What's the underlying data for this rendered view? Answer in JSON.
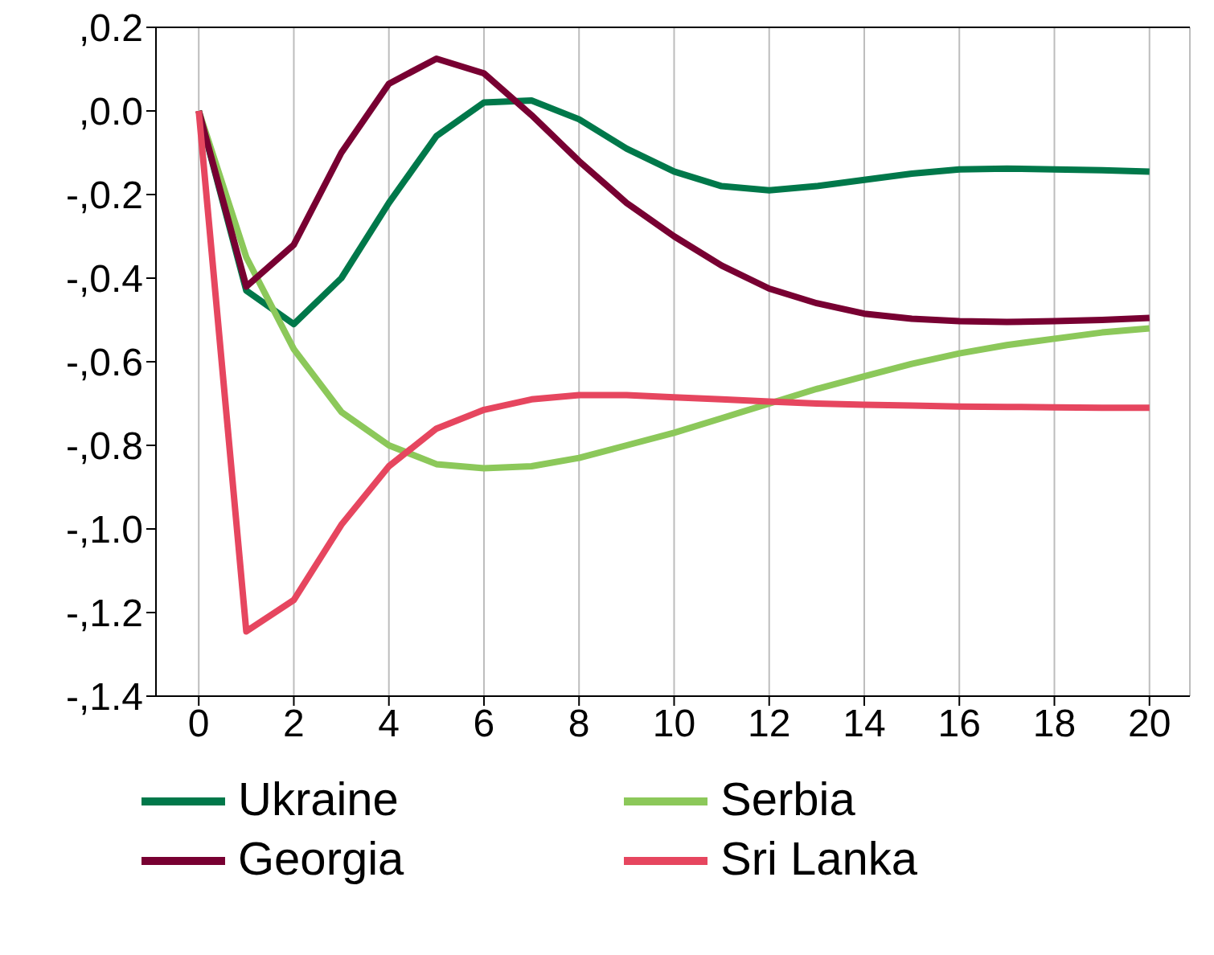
{
  "chart_data": {
    "type": "line",
    "x": [
      0,
      1,
      2,
      3,
      4,
      5,
      6,
      7,
      8,
      9,
      10,
      11,
      12,
      13,
      14,
      15,
      16,
      17,
      18,
      19,
      20
    ],
    "xlim": [
      -0.9,
      20.85
    ],
    "xticks": [
      0,
      2,
      4,
      6,
      8,
      10,
      12,
      14,
      16,
      18,
      20
    ],
    "ylim": [
      -1.4,
      0.2
    ],
    "yticks": [
      {
        "value": 0.2,
        "label": ",0.2"
      },
      {
        "value": 0,
        "label": ",0.0"
      },
      {
        "value": -0.2,
        "label": "-,0.2"
      },
      {
        "value": -0.4,
        "label": "-,0.4"
      },
      {
        "value": -0.6,
        "label": "-,0.6"
      },
      {
        "value": -0.8,
        "label": "-,0.8"
      },
      {
        "value": -1,
        "label": "-,1.0"
      },
      {
        "value": -1.2,
        "label": "-,1.2"
      },
      {
        "value": -1.4,
        "label": "-,1.4"
      }
    ],
    "grid": "x",
    "legend": "bottom",
    "marker": "none",
    "line_style": "solid",
    "series": [
      {
        "name": "Ukraine",
        "color": "#00784a",
        "values": [
          0,
          -0.43,
          -0.51,
          -0.4,
          -0.22,
          -0.06,
          0.02,
          0.025,
          -0.02,
          -0.09,
          -0.145,
          -0.18,
          -0.19,
          -0.18,
          -0.165,
          -0.15,
          -0.14,
          -0.138,
          -0.14,
          -0.142,
          -0.145
        ]
      },
      {
        "name": "Serbia",
        "color": "#8cc85a",
        "values": [
          0,
          -0.35,
          -0.57,
          -0.72,
          -0.8,
          -0.845,
          -0.855,
          -0.85,
          -0.83,
          -0.8,
          -0.77,
          -0.735,
          -0.7,
          -0.665,
          -0.635,
          -0.605,
          -0.58,
          -0.56,
          -0.545,
          -0.53,
          -0.52
        ]
      },
      {
        "name": "Georgia",
        "color": "#780032",
        "values": [
          0,
          -0.42,
          -0.32,
          -0.1,
          0.065,
          0.125,
          0.09,
          -0.01,
          -0.12,
          -0.22,
          -0.3,
          -0.37,
          -0.425,
          -0.46,
          -0.485,
          -0.497,
          -0.503,
          -0.505,
          -0.503,
          -0.5,
          -0.495
        ]
      },
      {
        "name": "Sri Lanka",
        "color": "#e6465f",
        "values": [
          0,
          -1.245,
          -1.17,
          -0.99,
          -0.85,
          -0.76,
          -0.715,
          -0.69,
          -0.68,
          -0.68,
          -0.685,
          -0.69,
          -0.695,
          -0.7,
          -0.703,
          -0.705,
          -0.707,
          -0.708,
          -0.709,
          -0.71,
          -0.71
        ]
      }
    ]
  }
}
